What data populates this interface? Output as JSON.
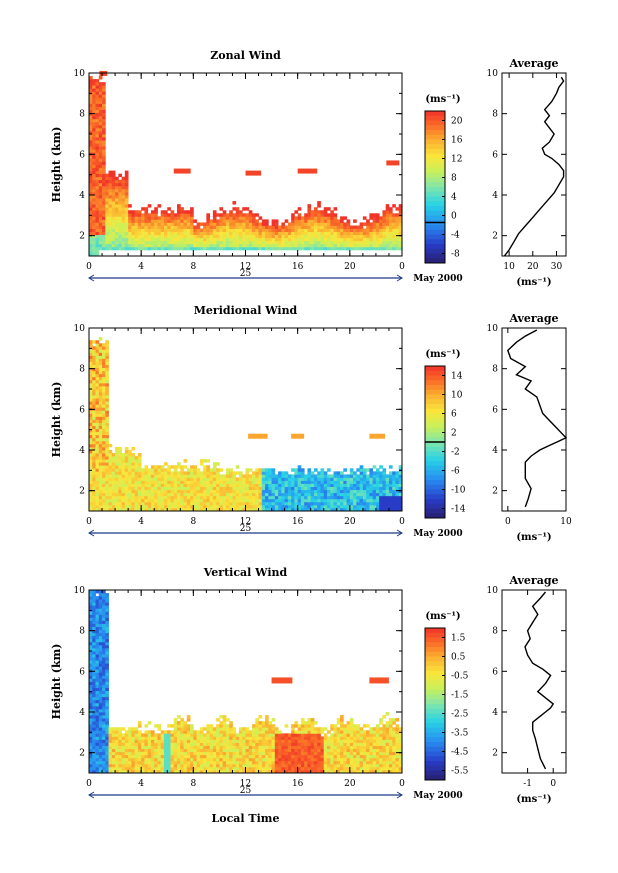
{
  "page": {
    "month_label": "May 2000",
    "xlabel": "Local Time",
    "day_label": "25"
  },
  "chart_data": [
    {
      "type": "heatmap",
      "title": "Zonal Wind",
      "ylabel": "Height (km)",
      "xlabel": "Local Time",
      "xlim": [
        0,
        24
      ],
      "ylim": [
        1,
        10
      ],
      "x_ticks": [
        "0",
        "4",
        "8",
        "12",
        "16",
        "20",
        "0"
      ],
      "y_ticks": [
        "2",
        "4",
        "6",
        "8",
        "10"
      ],
      "colorbar": {
        "unit": "(ms⁻¹)",
        "min": -8,
        "max": 22,
        "labels": [
          "20",
          "16",
          "12",
          "8",
          "4",
          "0",
          "-4",
          "-8"
        ],
        "zero_line": 0
      },
      "average": {
        "title": "Average",
        "unit": "(ms⁻¹)",
        "xlim": [
          7,
          34
        ],
        "x_ticks": [
          "10",
          "20",
          "30"
        ],
        "y_ticks": [
          "2",
          "4",
          "6",
          "8",
          "10"
        ],
        "x": [
          8,
          10,
          12,
          14,
          17,
          20,
          23,
          26,
          29,
          31,
          33,
          33,
          31,
          28,
          25,
          24,
          27,
          29,
          27,
          25,
          27,
          25,
          28,
          30,
          31,
          33,
          32
        ],
        "y": [
          1.0,
          1.3,
          1.7,
          2.1,
          2.5,
          2.9,
          3.3,
          3.7,
          4.1,
          4.5,
          4.9,
          5.2,
          5.5,
          5.8,
          6.0,
          6.3,
          6.6,
          7.0,
          7.3,
          7.6,
          7.9,
          8.2,
          8.6,
          9.0,
          9.3,
          9.6,
          9.8
        ]
      }
    },
    {
      "type": "heatmap",
      "title": "Meridional Wind",
      "ylabel": "Height (km)",
      "xlabel": "Local Time",
      "xlim": [
        0,
        24
      ],
      "ylim": [
        1,
        10
      ],
      "x_ticks": [
        "0",
        "4",
        "8",
        "12",
        "16",
        "20",
        "0"
      ],
      "y_ticks": [
        "2",
        "4",
        "6",
        "8",
        "10"
      ],
      "colorbar": {
        "unit": "(ms⁻¹)",
        "min": -16,
        "max": 16,
        "labels": [
          "14",
          "10",
          "6",
          "2",
          "-2",
          "-6",
          "-10",
          "-14"
        ],
        "zero_line": 0
      },
      "average": {
        "title": "Average",
        "unit": "(ms⁻¹)",
        "xlim": [
          -1,
          10
        ],
        "x_ticks": [
          "0",
          "10"
        ],
        "y_ticks": [
          "2",
          "4",
          "6",
          "8",
          "10"
        ],
        "x": [
          3,
          3.5,
          4,
          3,
          3,
          3,
          4,
          5.5,
          7,
          8.5,
          10,
          9,
          8,
          7,
          6,
          5.5,
          5,
          3,
          4,
          1.5,
          3,
          0.5,
          0,
          1.5,
          3,
          5
        ],
        "y": [
          1.2,
          1.6,
          2.1,
          2.6,
          3.0,
          3.4,
          3.7,
          4.0,
          4.2,
          4.4,
          4.6,
          4.9,
          5.2,
          5.5,
          5.8,
          6.2,
          6.6,
          7.0,
          7.4,
          7.7,
          8.1,
          8.5,
          8.9,
          9.3,
          9.6,
          9.9
        ]
      }
    },
    {
      "type": "heatmap",
      "title": "Vertical Wind",
      "ylabel": "Height (km)",
      "xlabel": "Local Time",
      "xlim": [
        0,
        24
      ],
      "ylim": [
        1,
        10
      ],
      "x_ticks": [
        "0",
        "4",
        "8",
        "12",
        "16",
        "20",
        "0"
      ],
      "y_ticks": [
        "2",
        "4",
        "6",
        "8",
        "10"
      ],
      "colorbar": {
        "unit": "(ms⁻¹)",
        "min": -6,
        "max": 2,
        "labels": [
          "1.5",
          "0.5",
          "-0.5",
          "-1.5",
          "-2.5",
          "-3.5",
          "-4.5",
          "-5.5"
        ],
        "zero_line": null
      },
      "average": {
        "title": "Average",
        "unit": "(ms⁻¹)",
        "xlim": [
          -2,
          0.5
        ],
        "x_ticks": [
          "-1",
          "0"
        ],
        "y_ticks": [
          "2",
          "4",
          "6",
          "8",
          "10"
        ],
        "x": [
          -0.3,
          -0.5,
          -0.6,
          -0.7,
          -0.8,
          -0.8,
          -0.5,
          -0.3,
          -0.1,
          0.0,
          -0.3,
          -0.6,
          -0.3,
          -0.1,
          -0.4,
          -0.8,
          -1.0,
          -1.1,
          -0.9,
          -1.0,
          -0.8,
          -0.6,
          -0.8,
          -0.5,
          -0.3
        ],
        "y": [
          1.2,
          1.7,
          2.2,
          2.7,
          3.1,
          3.5,
          3.8,
          4.0,
          4.2,
          4.4,
          4.7,
          5.0,
          5.4,
          5.8,
          6.1,
          6.4,
          6.8,
          7.2,
          7.6,
          8.0,
          8.4,
          8.8,
          9.2,
          9.6,
          9.9
        ]
      }
    }
  ]
}
